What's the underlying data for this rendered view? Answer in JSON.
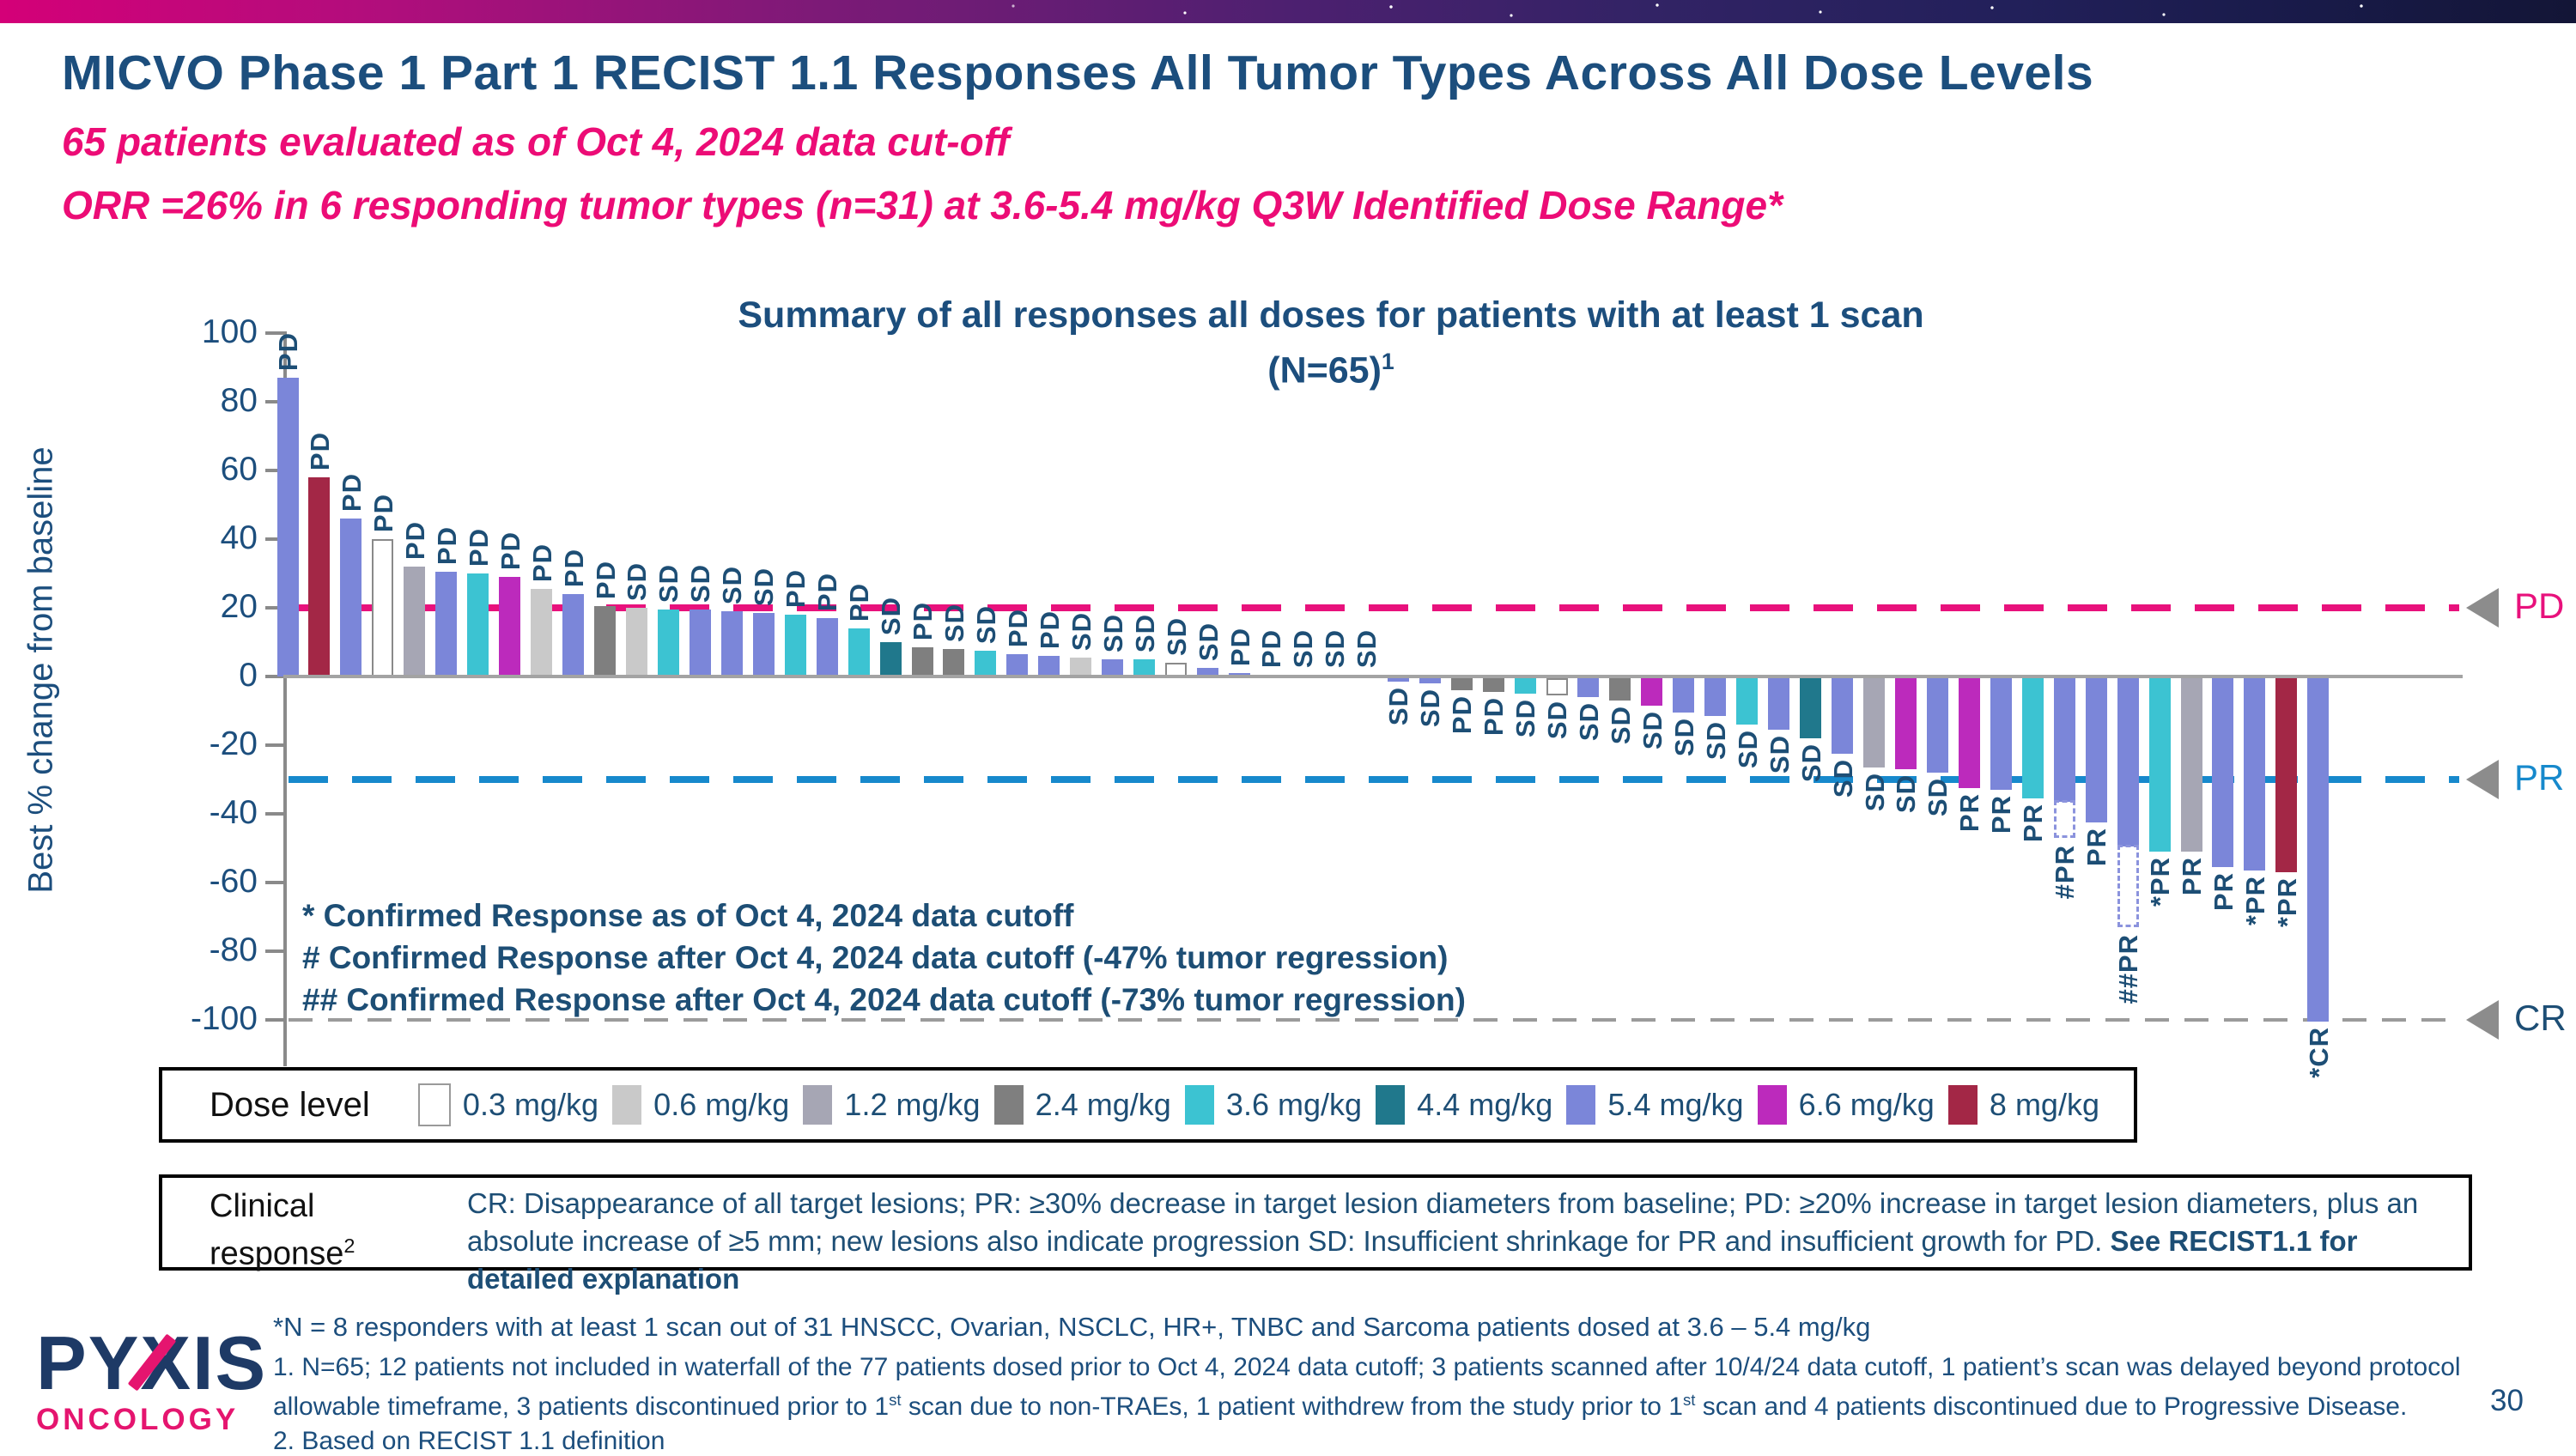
{
  "slide": {
    "title": "MICVO Phase 1 Part 1 RECIST 1.1 Responses All Tumor Types Across All Dose Levels",
    "subtitle1": "65 patients evaluated as of Oct 4, 2024 data cut-off",
    "subtitle2": "ORR =26% in 6 responding tumor types (n=31) at 3.6-5.4 mg/kg Q3W Identified Dose Range*",
    "page_number": "30",
    "logo": {
      "brand": "PYXIS",
      "sub": "ONCOLOGY"
    }
  },
  "chart_data": {
    "type": "bar",
    "subtype": "waterfall",
    "title_line1": "Summary of all responses all doses for patients with at least 1 scan",
    "title_line2": "(N=65)",
    "title_superscript": "1",
    "ylabel": "Best % change from baseline",
    "ylim": [
      -100,
      100
    ],
    "grid": false,
    "yticks": [
      100,
      80,
      60,
      40,
      20,
      0,
      -20,
      -40,
      -60,
      -80,
      -100
    ],
    "thresholds": [
      {
        "label": "PD",
        "value": 20,
        "color": "#e8117c",
        "label_color": "#e8117c",
        "dash": 46,
        "gap": 28,
        "thick": 8
      },
      {
        "label": "PR",
        "value": -30,
        "color": "#1789cc",
        "label_color": "#1789cc",
        "dash": 46,
        "gap": 28,
        "thick": 8
      },
      {
        "label": "CR",
        "value": -100,
        "color": "#9b9b9b",
        "label_color": "#1d4e75",
        "dash": 28,
        "gap": 18,
        "thick": 4
      }
    ],
    "doses": [
      {
        "label": "0.3 mg/kg",
        "color": "#FFFFFF"
      },
      {
        "label": "0.6 mg/kg",
        "color": "#C9C9C9"
      },
      {
        "label": "1.2 mg/kg",
        "color": "#A6A6B4"
      },
      {
        "label": "2.4 mg/kg",
        "color": "#7F7F7F"
      },
      {
        "label": "3.6 mg/kg",
        "color": "#3CC3D2"
      },
      {
        "label": "4.4 mg/kg",
        "color": "#20788C"
      },
      {
        "label": "5.4 mg/kg",
        "color": "#7B86D9"
      },
      {
        "label": "6.6 mg/kg",
        "color": "#BC2ABC"
      },
      {
        "label": "8 mg/kg",
        "color": "#A32746"
      }
    ],
    "bars": [
      {
        "response": "PD",
        "dose": "5.4",
        "value": 87
      },
      {
        "response": "PD",
        "dose": "8",
        "value": 58
      },
      {
        "response": "PD",
        "dose": "5.4",
        "value": 46
      },
      {
        "response": "PD",
        "dose": "0.3",
        "value": 40
      },
      {
        "response": "PD",
        "dose": "1.2",
        "value": 32
      },
      {
        "response": "PD",
        "dose": "5.4",
        "value": 30.5
      },
      {
        "response": "PD",
        "dose": "3.6",
        "value": 30
      },
      {
        "response": "PD",
        "dose": "6.6",
        "value": 29
      },
      {
        "response": "PD",
        "dose": "0.6",
        "value": 25.5
      },
      {
        "response": "PD",
        "dose": "5.4",
        "value": 24
      },
      {
        "response": "PD",
        "dose": "2.4",
        "value": 20.5
      },
      {
        "response": "SD",
        "dose": "0.6",
        "value": 20
      },
      {
        "response": "SD",
        "dose": "3.6",
        "value": 19.5
      },
      {
        "response": "SD",
        "dose": "5.4",
        "value": 19.5
      },
      {
        "response": "SD",
        "dose": "5.4",
        "value": 19
      },
      {
        "response": "SD",
        "dose": "5.4",
        "value": 18.5
      },
      {
        "response": "PD",
        "dose": "3.6",
        "value": 18
      },
      {
        "response": "PD",
        "dose": "5.4",
        "value": 17
      },
      {
        "response": "PD",
        "dose": "3.6",
        "value": 14
      },
      {
        "response": "SD",
        "dose": "4.4",
        "value": 10
      },
      {
        "response": "PD",
        "dose": "2.4",
        "value": 8.5
      },
      {
        "response": "SD",
        "dose": "2.4",
        "value": 8
      },
      {
        "response": "SD",
        "dose": "3.6",
        "value": 7.5
      },
      {
        "response": "PD",
        "dose": "5.4",
        "value": 6.5
      },
      {
        "response": "PD",
        "dose": "5.4",
        "value": 6
      },
      {
        "response": "SD",
        "dose": "0.6",
        "value": 5.5
      },
      {
        "response": "SD",
        "dose": "5.4",
        "value": 5
      },
      {
        "response": "SD",
        "dose": "3.6",
        "value": 5
      },
      {
        "response": "SD",
        "dose": "0.3",
        "value": 4
      },
      {
        "response": "SD",
        "dose": "5.4",
        "value": 2.5
      },
      {
        "response": "PD",
        "dose": "5.4",
        "value": 1
      },
      {
        "response": "PD",
        "dose": "0.6",
        "value": 0.5
      },
      {
        "response": "SD",
        "dose": "0.6",
        "value": 0.5
      },
      {
        "response": "SD",
        "dose": "0.6",
        "value": 0.5
      },
      {
        "response": "SD",
        "dose": "0.6",
        "value": 0.5
      },
      {
        "response": "SD",
        "dose": "5.4",
        "value": -1
      },
      {
        "response": "SD",
        "dose": "5.4",
        "value": -1.5
      },
      {
        "response": "PD",
        "dose": "2.4",
        "value": -3.5
      },
      {
        "response": "PD",
        "dose": "2.4",
        "value": -4
      },
      {
        "response": "SD",
        "dose": "3.6",
        "value": -4.5
      },
      {
        "response": "SD",
        "dose": "0.3",
        "value": -5
      },
      {
        "response": "SD",
        "dose": "5.4",
        "value": -5.5
      },
      {
        "response": "SD",
        "dose": "2.4",
        "value": -6.5
      },
      {
        "response": "SD",
        "dose": "6.6",
        "value": -8
      },
      {
        "response": "SD",
        "dose": "5.4",
        "value": -10
      },
      {
        "response": "SD",
        "dose": "5.4",
        "value": -11
      },
      {
        "response": "SD",
        "dose": "3.6",
        "value": -13.5
      },
      {
        "response": "SD",
        "dose": "5.4",
        "value": -15
      },
      {
        "response": "SD",
        "dose": "4.4",
        "value": -17.5
      },
      {
        "response": "SD",
        "dose": "5.4",
        "value": -22
      },
      {
        "response": "SD",
        "dose": "1.2",
        "value": -26
      },
      {
        "response": "SD",
        "dose": "6.6",
        "value": -26.5
      },
      {
        "response": "SD",
        "dose": "5.4",
        "value": -27.5
      },
      {
        "response": "PR",
        "dose": "6.6",
        "value": -32
      },
      {
        "response": "PR",
        "dose": "5.4",
        "value": -32.5
      },
      {
        "response": "PR",
        "dose": "3.6",
        "value": -35
      },
      {
        "response": "#PR",
        "dose": "5.4",
        "value": -36,
        "confirmed_ext": -47
      },
      {
        "response": "PR",
        "dose": "5.4",
        "value": -42
      },
      {
        "response": "##PR",
        "dose": "5.4",
        "value": -49,
        "confirmed_ext": -73
      },
      {
        "response": "*PR",
        "dose": "3.6",
        "value": -50.5
      },
      {
        "response": "PR",
        "dose": "1.2",
        "value": -50.5
      },
      {
        "response": "PR",
        "dose": "5.4",
        "value": -55
      },
      {
        "response": "*PR",
        "dose": "5.4",
        "value": -56
      },
      {
        "response": "*PR",
        "dose": "8",
        "value": -56.5
      },
      {
        "response": "*CR",
        "dose": "5.4",
        "value": -100
      }
    ],
    "annotations": [
      "* Confirmed Response as of Oct 4, 2024 data cutoff",
      "# Confirmed Response after Oct 4, 2024 data cutoff (-47% tumor regression)",
      "## Confirmed Response after Oct 4, 2024 data cutoff (-73% tumor regression)"
    ]
  },
  "legend": {
    "title": "Dose level"
  },
  "clinical": {
    "label": "Clinical response",
    "sup": "2",
    "text": "CR: Disappearance of all target lesions; PR: ≥30% decrease in target lesion diameters from baseline; PD: ≥20% increase in target lesion diameters, plus an absolute increase of ≥5 mm; new lesions also indicate progression SD: Insufficient shrinkage for PR and insufficient growth for PD. ",
    "text_bold": "See RECIST1.1 for detailed explanation"
  },
  "footnotes": {
    "star": "*N = 8 responders with at least 1 scan out of 31 HNSCC, Ovarian, NSCLC, HR+, TNBC and Sarcoma patients dosed at 3.6 – 5.4 mg/kg",
    "note1_p0": "1.  N=65; 12 patients not included in waterfall of the 77 patients dosed prior to Oct 4, 2024 data cutoff; 3 patients scanned after 10/4/24 data cutoff, 1 patient’s scan was delayed beyond protocol allowable timeframe, 3 patients discontinued prior to 1",
    "note1_sup": "st",
    "note1_p1": " scan due to non-TRAEs, 1 patient withdrew from the study prior to 1",
    "note1_p2": " scan and 4 patients discontinued due to Progressive Disease.",
    "note2": "2. Based on RECIST 1.1 definition"
  }
}
